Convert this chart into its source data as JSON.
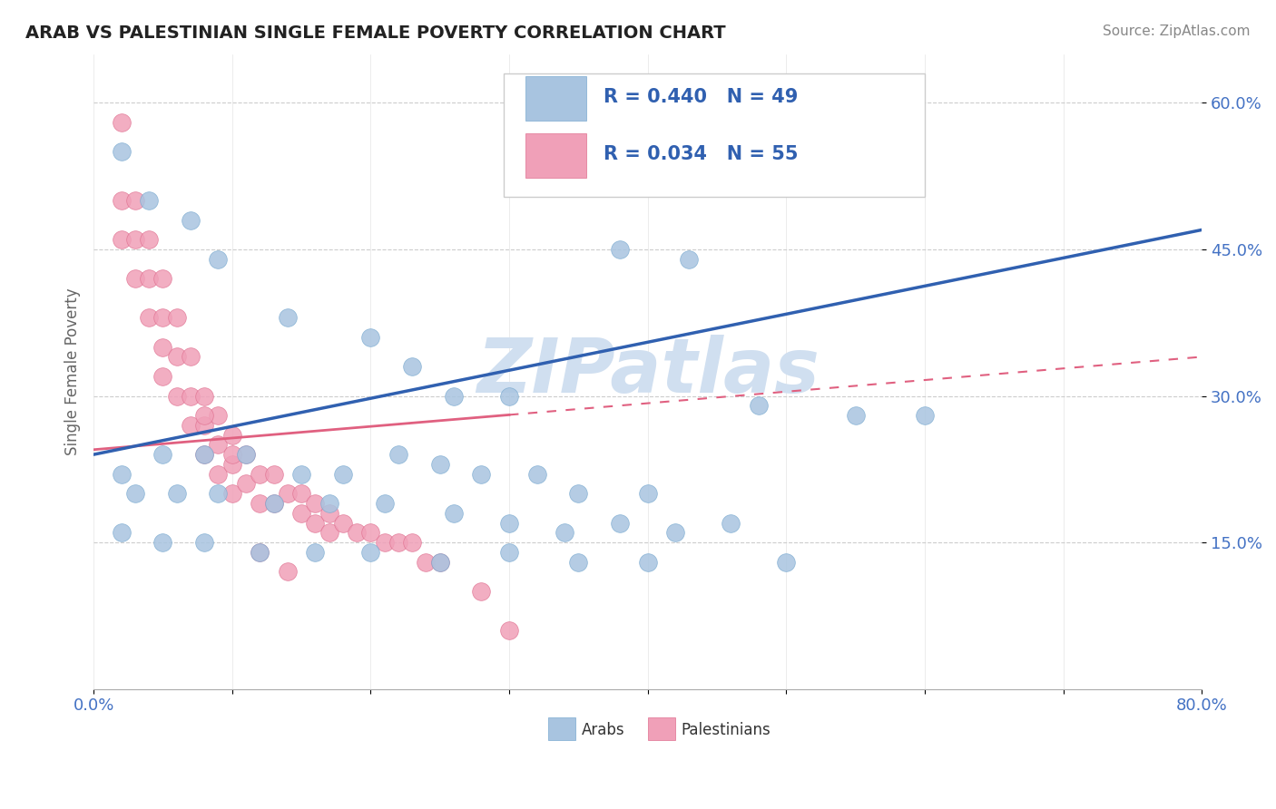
{
  "title": "ARAB VS PALESTINIAN SINGLE FEMALE POVERTY CORRELATION CHART",
  "source": "Source: ZipAtlas.com",
  "ylabel": "Single Female Poverty",
  "arab_R": 0.44,
  "arab_N": 49,
  "palestinian_R": 0.034,
  "palestinian_N": 55,
  "arab_color": "#a8c4e0",
  "arab_edge_color": "#7aaad0",
  "arab_line_color": "#3060b0",
  "palestinian_color": "#f0a0b8",
  "palestinian_edge_color": "#e07090",
  "palestinian_line_color": "#e06080",
  "watermark": "ZIPatlas",
  "watermark_color": "#d0dff0",
  "xlim": [
    0.0,
    0.8
  ],
  "ylim": [
    0.0,
    0.65
  ],
  "yticks": [
    0.15,
    0.3,
    0.45,
    0.6
  ],
  "ytick_labels": [
    "15.0%",
    "30.0%",
    "45.0%",
    "60.0%"
  ],
  "arab_line_x0": 0.0,
  "arab_line_y0": 0.24,
  "arab_line_x1": 0.8,
  "arab_line_y1": 0.47,
  "pal_line_x0": 0.0,
  "pal_line_y0": 0.245,
  "pal_line_x1": 0.8,
  "pal_line_y1": 0.34,
  "arab_points_x": [
    0.02,
    0.04,
    0.07,
    0.09,
    0.14,
    0.2,
    0.23,
    0.26,
    0.3,
    0.38,
    0.43,
    0.48,
    0.55,
    0.6,
    0.02,
    0.05,
    0.08,
    0.11,
    0.15,
    0.18,
    0.22,
    0.25,
    0.28,
    0.32,
    0.35,
    0.4,
    0.03,
    0.06,
    0.09,
    0.13,
    0.17,
    0.21,
    0.26,
    0.3,
    0.34,
    0.38,
    0.42,
    0.46,
    0.02,
    0.05,
    0.08,
    0.12,
    0.16,
    0.2,
    0.25,
    0.3,
    0.35,
    0.4,
    0.5
  ],
  "arab_points_y": [
    0.55,
    0.5,
    0.48,
    0.44,
    0.38,
    0.36,
    0.33,
    0.3,
    0.3,
    0.45,
    0.44,
    0.29,
    0.28,
    0.28,
    0.22,
    0.24,
    0.24,
    0.24,
    0.22,
    0.22,
    0.24,
    0.23,
    0.22,
    0.22,
    0.2,
    0.2,
    0.2,
    0.2,
    0.2,
    0.19,
    0.19,
    0.19,
    0.18,
    0.17,
    0.16,
    0.17,
    0.16,
    0.17,
    0.16,
    0.15,
    0.15,
    0.14,
    0.14,
    0.14,
    0.13,
    0.14,
    0.13,
    0.13,
    0.13
  ],
  "pal_points_x": [
    0.02,
    0.02,
    0.02,
    0.03,
    0.03,
    0.03,
    0.04,
    0.04,
    0.04,
    0.05,
    0.05,
    0.05,
    0.05,
    0.06,
    0.06,
    0.06,
    0.07,
    0.07,
    0.07,
    0.08,
    0.08,
    0.08,
    0.09,
    0.09,
    0.09,
    0.1,
    0.1,
    0.1,
    0.11,
    0.11,
    0.12,
    0.12,
    0.13,
    0.13,
    0.14,
    0.15,
    0.15,
    0.16,
    0.16,
    0.17,
    0.17,
    0.18,
    0.19,
    0.2,
    0.21,
    0.22,
    0.23,
    0.24,
    0.25,
    0.28,
    0.3,
    0.1,
    0.12,
    0.14,
    0.08
  ],
  "pal_points_y": [
    0.58,
    0.5,
    0.46,
    0.5,
    0.46,
    0.42,
    0.46,
    0.42,
    0.38,
    0.42,
    0.38,
    0.35,
    0.32,
    0.38,
    0.34,
    0.3,
    0.34,
    0.3,
    0.27,
    0.3,
    0.27,
    0.24,
    0.28,
    0.25,
    0.22,
    0.26,
    0.23,
    0.2,
    0.24,
    0.21,
    0.22,
    0.19,
    0.22,
    0.19,
    0.2,
    0.2,
    0.18,
    0.19,
    0.17,
    0.18,
    0.16,
    0.17,
    0.16,
    0.16,
    0.15,
    0.15,
    0.15,
    0.13,
    0.13,
    0.1,
    0.06,
    0.24,
    0.14,
    0.12,
    0.28
  ]
}
